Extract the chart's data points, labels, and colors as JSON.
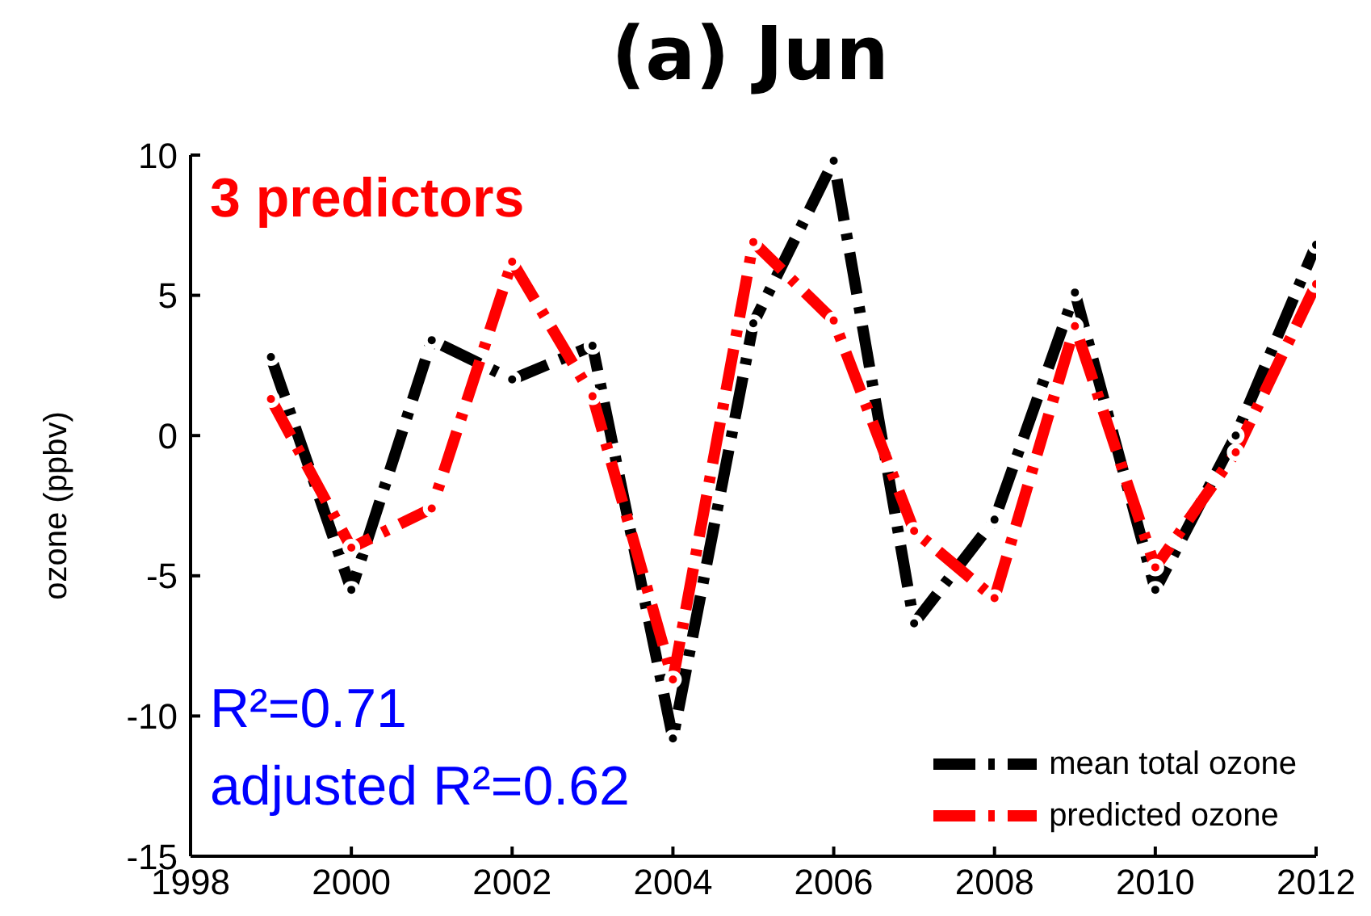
{
  "chart_data": {
    "type": "line",
    "title": "(a) Jun",
    "ylabel": "ozone (ppbv)",
    "x": [
      1999,
      2000,
      2001,
      2002,
      2003,
      2004,
      2005,
      2006,
      2007,
      2008,
      2009,
      2010,
      2011,
      2012
    ],
    "series": [
      {
        "name": "mean total ozone",
        "color": "#000000",
        "values": [
          2.8,
          -5.5,
          3.4,
          2.0,
          3.2,
          -10.8,
          4.0,
          9.8,
          -6.7,
          -3.0,
          5.1,
          -5.5,
          0.0,
          6.8
        ]
      },
      {
        "name": "predicted ozone",
        "color": "#ff0000",
        "values": [
          1.3,
          -4.0,
          -2.6,
          6.2,
          1.4,
          -8.7,
          6.9,
          4.1,
          -3.4,
          -5.8,
          3.9,
          -4.7,
          -0.6,
          5.4
        ]
      }
    ],
    "xlim": [
      1998,
      2012
    ],
    "xticks": [
      1998,
      2000,
      2002,
      2004,
      2006,
      2008,
      2010,
      2012
    ],
    "ylim": [
      -15,
      10
    ],
    "yticks": [
      -15,
      -10,
      -5,
      0,
      5,
      10
    ],
    "annotations": [
      "3 predictors",
      "R²=0.71",
      "adjusted R²=0.62"
    ],
    "legend": "bottom right",
    "line_style": "dashed",
    "marker": "circle",
    "grid": false
  }
}
